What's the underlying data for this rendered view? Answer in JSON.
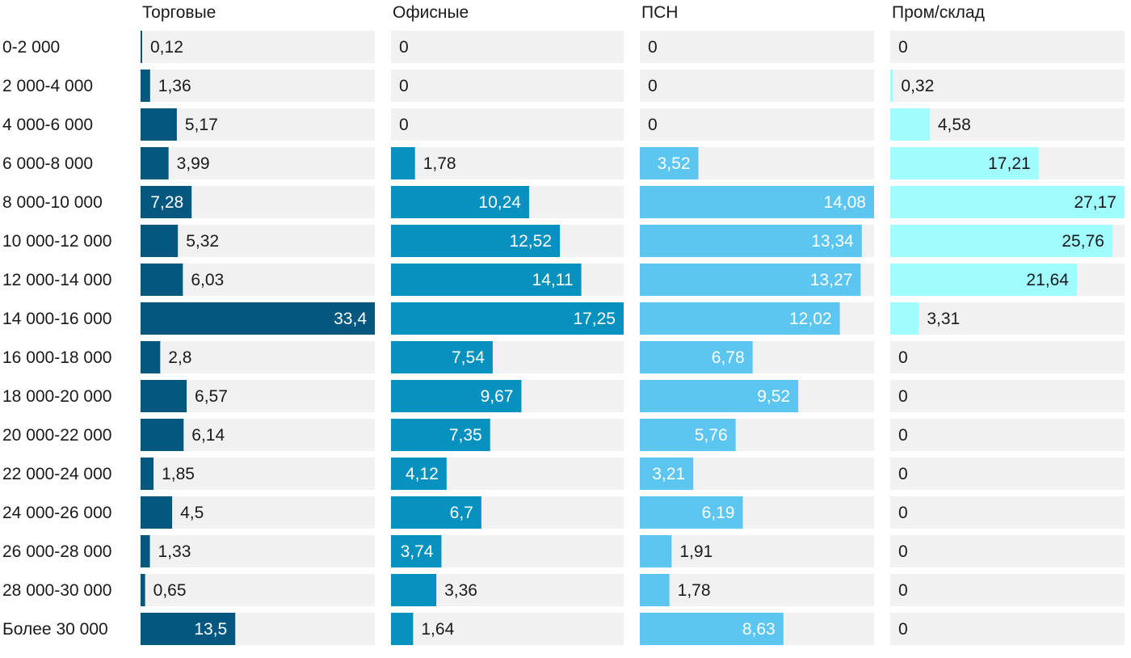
{
  "chart_data": {
    "type": "bar",
    "orientation": "horizontal",
    "layout": "small-multiples",
    "categories": [
      "0-2 000",
      "2 000-4 000",
      "4 000-6 000",
      "6 000-8 000",
      "8 000-10 000",
      "10 000-12 000",
      "12 000-14 000",
      "14 000-16 000",
      "16 000-18 000",
      "18 000-20 000",
      "20 000-22 000",
      "22 000-24 000",
      "24 000-26 000",
      "26 000-28 000",
      "28 000-30 000",
      "Более 30 000"
    ],
    "series": [
      {
        "name": "Торговые",
        "color": "#04587f",
        "values": [
          0.12,
          1.36,
          5.17,
          3.99,
          7.28,
          5.32,
          6.03,
          33.4,
          2.8,
          6.57,
          6.14,
          1.85,
          4.5,
          1.33,
          0.65,
          13.5
        ],
        "labels": [
          "0,12",
          "1,36",
          "5,17",
          "3,99",
          "7,28",
          "5,32",
          "6,03",
          "33,4",
          "2,8",
          "6,57",
          "6,14",
          "1,85",
          "4,5",
          "1,33",
          "0,65",
          "13,5"
        ]
      },
      {
        "name": "Офисные",
        "color": "#0691bf",
        "values": [
          0,
          0,
          0,
          1.78,
          10.24,
          12.52,
          14.11,
          17.25,
          7.54,
          9.67,
          7.35,
          4.12,
          6.7,
          3.74,
          3.36,
          1.64
        ],
        "labels": [
          "0",
          "0",
          "0",
          "1,78",
          "10,24",
          "12,52",
          "14,11",
          "17,25",
          "7,54",
          "9,67",
          "7,35",
          "4,12",
          "6,7",
          "3,74",
          "3,36",
          "1,64"
        ]
      },
      {
        "name": "ПСН",
        "color": "#5cc6f1",
        "values": [
          0,
          0,
          0,
          3.52,
          14.08,
          13.34,
          13.27,
          12.02,
          6.78,
          9.52,
          5.76,
          3.21,
          6.19,
          1.91,
          1.78,
          8.63
        ],
        "labels": [
          "0",
          "0",
          "0",
          "3,52",
          "14,08",
          "13,34",
          "13,27",
          "12,02",
          "6,78",
          "9,52",
          "5,76",
          "3,21",
          "6,19",
          "1,91",
          "1,78",
          "8,63"
        ]
      },
      {
        "name": "Пром/склад",
        "color": "#a1fcfe",
        "values": [
          0,
          0.32,
          4.58,
          17.21,
          27.17,
          25.76,
          21.64,
          3.31,
          0,
          0,
          0,
          0,
          0,
          0,
          0,
          0
        ],
        "labels": [
          "0",
          "0,32",
          "4,58",
          "17,21",
          "27,17",
          "25,76",
          "21,64",
          "3,31",
          "0",
          "0",
          "0",
          "0",
          "0",
          "0",
          "0",
          "0"
        ]
      }
    ],
    "label_colors": {
      "outside": "#1a1a1a",
      "inside": "#ffffff"
    },
    "track_color": "#f1f1f1"
  }
}
